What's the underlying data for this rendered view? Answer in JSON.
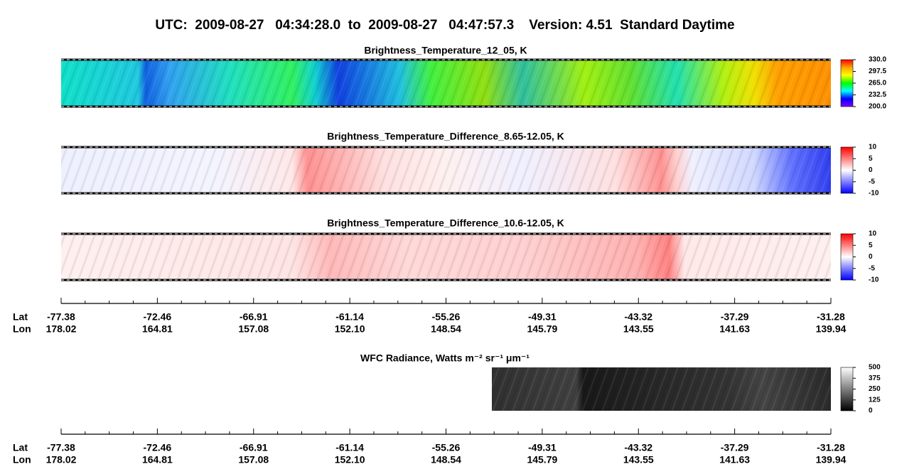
{
  "title": "UTC:  2009-08-27   04:34:28.0  to  2009-08-27   04:47:57.3    Version: 4.51  Standard Daytime",
  "chart_data": [
    {
      "type": "image",
      "title": "Brightness_Temperature_12_05, K",
      "clim": [
        200,
        330
      ],
      "cticks": [
        {
          "value": 330,
          "label": "330.0"
        },
        {
          "value": 297.5,
          "label": "297.5"
        },
        {
          "value": 265,
          "label": "265.0"
        },
        232.5,
        {
          "value": 200,
          "label": "200.0"
        }
      ],
      "colormap": [
        "#ff0000",
        "#ffa500",
        "#ffff00",
        "#00ff00",
        "#00ffff",
        "#0000ff",
        "#8000ff"
      ]
    },
    {
      "type": "image",
      "title": "Brightness_Temperature_Difference_8.65-12.05, K",
      "clim": [
        -10,
        10
      ],
      "cticks": [
        10,
        5,
        0,
        -5,
        -10
      ],
      "colormap": [
        "#ff0000",
        "#ffffff",
        "#0000ff"
      ]
    },
    {
      "type": "image",
      "title": "Brightness_Temperature_Difference_10.6-12.05, K",
      "clim": [
        -10,
        10
      ],
      "cticks": [
        10,
        5,
        0,
        -5,
        -10
      ],
      "colormap": [
        "#ff0000",
        "#ffffff",
        "#0000ff"
      ]
    },
    {
      "type": "image",
      "title": "WFC Radiance, Watts m⁻² sr⁻¹ μm⁻¹",
      "clim": [
        0,
        500
      ],
      "cticks": [
        500,
        375,
        250,
        125,
        0
      ],
      "colormap": [
        "#ffffff",
        "#000000"
      ]
    }
  ],
  "axes": [
    {
      "lat_label": "Lat",
      "lon_label": "Lon",
      "lat": [
        -77.38,
        -72.46,
        -66.91,
        -61.14,
        -55.26,
        -49.31,
        -43.32,
        -37.29,
        -31.28
      ],
      "lon": [
        178.02,
        164.81,
        157.08,
        {
          "value": 152.1,
          "label": "152.10"
        },
        148.54,
        145.79,
        143.55,
        141.63,
        139.94
      ]
    },
    {
      "lat_label": "Lat",
      "lon_label": "Lon",
      "lat": [
        -77.38,
        -72.46,
        -66.91,
        -61.14,
        -55.26,
        -49.31,
        -43.32,
        -37.29,
        -31.28
      ],
      "lon": [
        178.02,
        164.81,
        157.08,
        {
          "value": 152.1,
          "label": "152.10"
        },
        148.54,
        145.79,
        143.55,
        141.63,
        139.94
      ]
    }
  ]
}
